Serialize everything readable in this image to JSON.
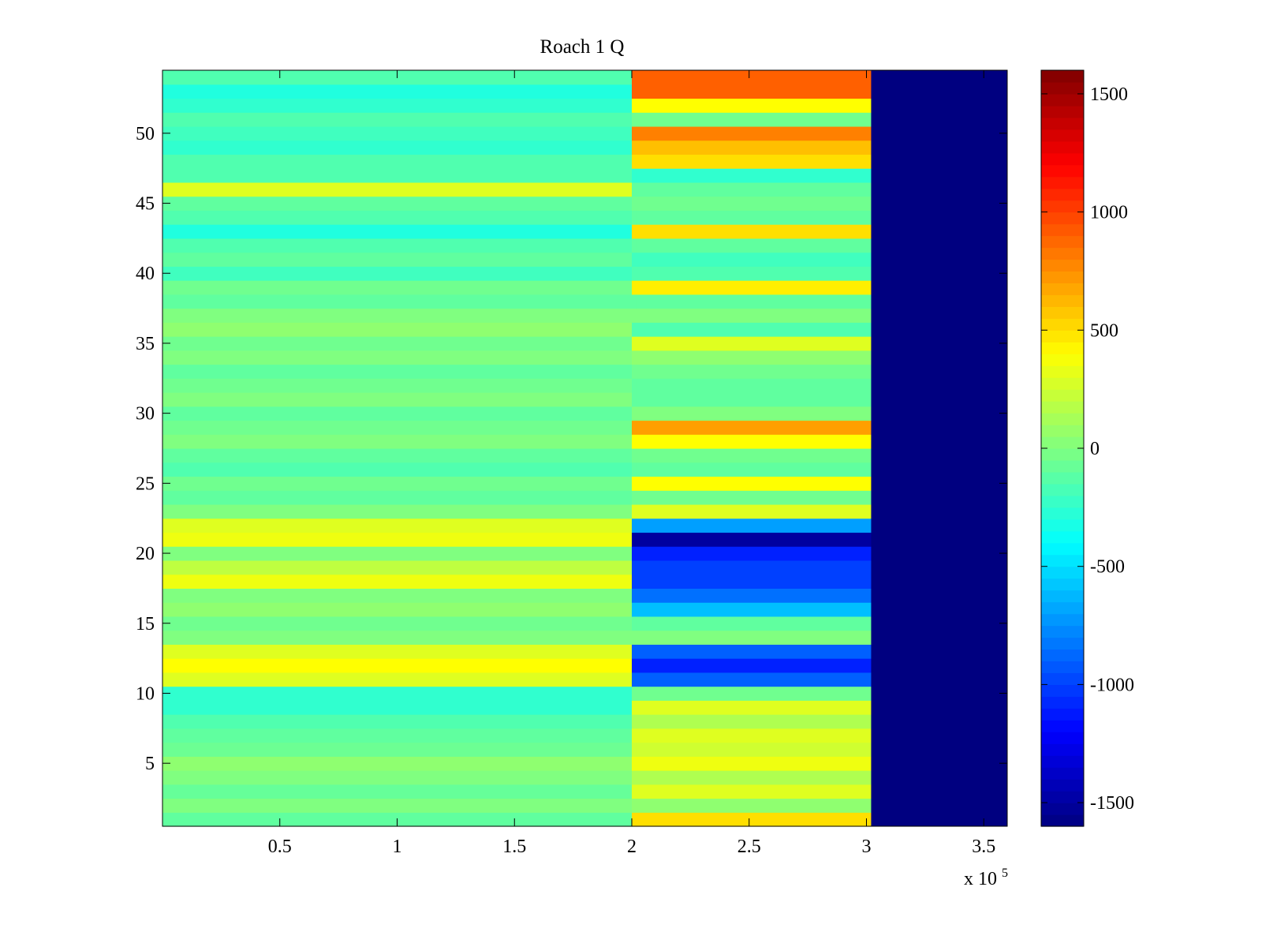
{
  "chart_data": {
    "type": "heatmap",
    "title": "Roach 1 Q",
    "xlabel": "",
    "ylabel": "",
    "x_multiplier_label": "x 10",
    "x_multiplier_exponent": "5",
    "xlim": [
      0,
      3.6
    ],
    "ylim": [
      0.5,
      54.5
    ],
    "x_ticks": [
      0.5,
      1,
      1.5,
      2,
      2.5,
      3,
      3.5
    ],
    "x_tick_labels": [
      "0.5",
      "1",
      "1.5",
      "2",
      "2.5",
      "3",
      "3.5"
    ],
    "y_ticks": [
      5,
      10,
      15,
      20,
      25,
      30,
      35,
      40,
      45,
      50
    ],
    "y_tick_labels": [
      "5",
      "10",
      "15",
      "20",
      "25",
      "30",
      "35",
      "40",
      "45",
      "50"
    ],
    "colorbar": {
      "colormap": "jet",
      "clim": [
        -1600,
        1600
      ],
      "ticks": [
        -1500,
        -1000,
        -500,
        0,
        500,
        1000,
        1500
      ],
      "tick_labels": [
        "-1500",
        "-1000",
        "-500",
        "0",
        "500",
        "1000",
        "1500"
      ]
    },
    "rows": 54,
    "data_end_x": 3.02,
    "fill_value_after_end": -1600,
    "transition_x": 2.02,
    "segments": [
      {
        "name": "before",
        "x_range": [
          0,
          2.0
        ],
        "row_values": [
          -100,
          0,
          -80,
          0,
          50,
          -60,
          -100,
          -150,
          -250,
          -250,
          300,
          400,
          300,
          0,
          -50,
          50,
          0,
          350,
          200,
          0,
          350,
          300,
          0,
          -100,
          -50,
          -150,
          -100,
          0,
          -50,
          -100,
          0,
          -50,
          -100,
          0,
          -50,
          50,
          0,
          -100,
          -50,
          -200,
          -100,
          -150,
          -300,
          -150,
          -100,
          300,
          -150,
          -150,
          -250,
          -200,
          -150,
          -250,
          -300,
          -150
        ]
      },
      {
        "name": "after",
        "x_range": [
          2.02,
          3.02
        ],
        "row_values": [
          500,
          50,
          300,
          150,
          350,
          250,
          300,
          150,
          300,
          -50,
          -900,
          -1100,
          -900,
          0,
          -100,
          -600,
          -850,
          -1000,
          -1000,
          -1100,
          -1500,
          -700,
          300,
          -50,
          400,
          -100,
          -50,
          400,
          700,
          0,
          -100,
          -100,
          -50,
          50,
          300,
          -150,
          0,
          -100,
          450,
          -150,
          -200,
          -100,
          500,
          -100,
          -50,
          -100,
          -250,
          500,
          600,
          800,
          -50,
          400,
          900,
          900
        ]
      }
    ]
  }
}
